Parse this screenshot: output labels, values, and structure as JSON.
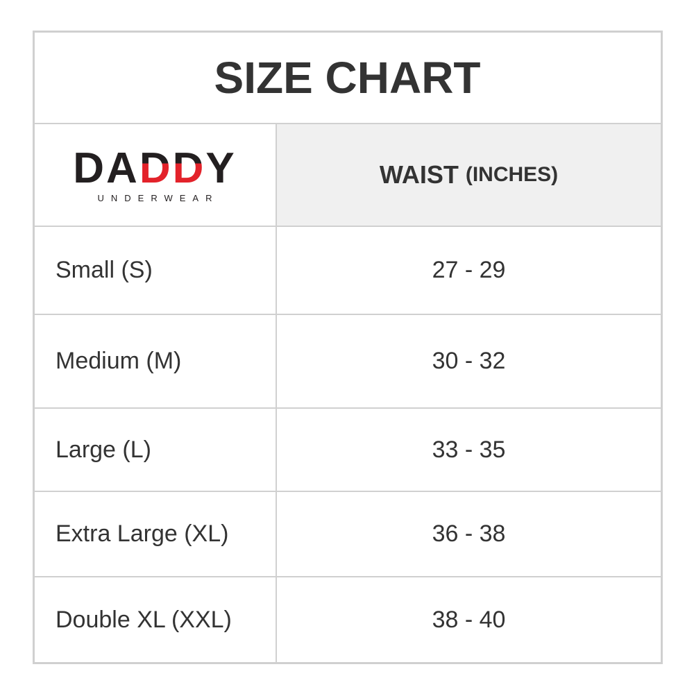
{
  "title": "SIZE CHART",
  "logo": {
    "main_black": "DA",
    "main_red": "DD",
    "main_end": "Y",
    "sub": "UNDERWEAR"
  },
  "header": {
    "column": "WAIST",
    "unit": "(INCHES)"
  },
  "rows": [
    {
      "size": "Small (S)",
      "waist": "27 - 29"
    },
    {
      "size": "Medium (M)",
      "waist": "30 - 32"
    },
    {
      "size": "Large (L)",
      "waist": "33 - 35"
    },
    {
      "size": "Extra Large (XL)",
      "waist": "36 - 38"
    },
    {
      "size": "Double XL (XXL)",
      "waist": "38 - 40"
    }
  ],
  "colors": {
    "border": "#d0d0d0",
    "header_bg": "#f0f0f0",
    "logo_red": "#e3222a"
  }
}
